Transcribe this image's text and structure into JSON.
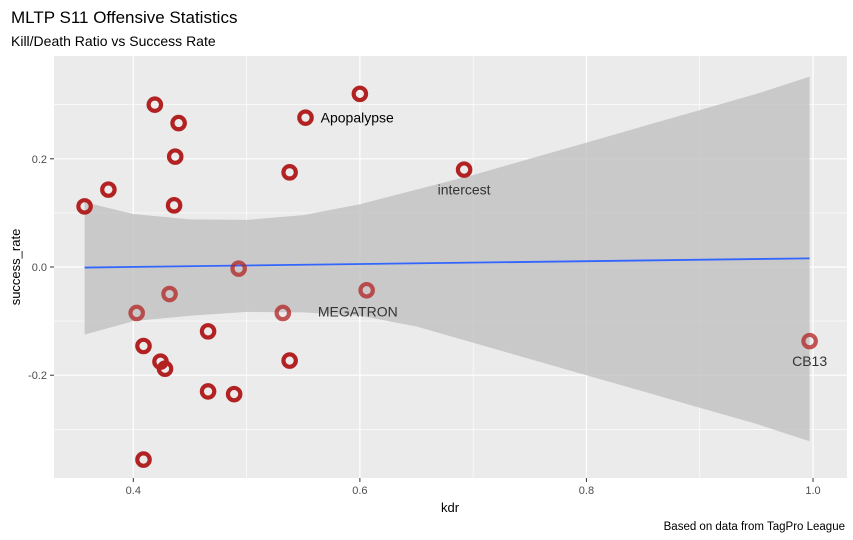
{
  "chart_data": {
    "type": "scatter",
    "title": "MLTP S11 Offensive Statistics",
    "subtitle": "Kill/Death Ratio vs Success Rate",
    "caption": "Based on data from TagPro League",
    "xlabel": "kdr",
    "ylabel": "success_rate",
    "xlim": [
      0.33,
      1.03
    ],
    "ylim": [
      -0.39,
      0.39
    ],
    "x_ticks": [
      0.4,
      0.6,
      0.8,
      1.0
    ],
    "x_tick_labels": [
      "0.4",
      "0.6",
      "0.8",
      "1.0"
    ],
    "y_ticks": [
      -0.2,
      0.0,
      0.2
    ],
    "y_tick_labels": [
      "-0.2",
      "0.0",
      "0.2"
    ],
    "grid": true,
    "colors": {
      "panel": "#ebebeb",
      "grid_major": "#ffffff",
      "point": "#b22222",
      "fit_line": "#3366ff",
      "ribbon": "#bebebe"
    },
    "points": [
      {
        "x": 0.357,
        "y": 0.112
      },
      {
        "x": 0.378,
        "y": 0.143
      },
      {
        "x": 0.419,
        "y": 0.3
      },
      {
        "x": 0.44,
        "y": 0.266
      },
      {
        "x": 0.437,
        "y": 0.204
      },
      {
        "x": 0.436,
        "y": 0.114
      },
      {
        "x": 0.552,
        "y": 0.276
      },
      {
        "x": 0.6,
        "y": 0.32
      },
      {
        "x": 0.538,
        "y": 0.175
      },
      {
        "x": 0.692,
        "y": 0.18
      },
      {
        "x": 0.493,
        "y": -0.003
      },
      {
        "x": 0.432,
        "y": -0.05
      },
      {
        "x": 0.403,
        "y": -0.085
      },
      {
        "x": 0.532,
        "y": -0.085
      },
      {
        "x": 0.606,
        "y": -0.043
      },
      {
        "x": 0.466,
        "y": -0.119
      },
      {
        "x": 0.409,
        "y": -0.146
      },
      {
        "x": 0.424,
        "y": -0.175
      },
      {
        "x": 0.428,
        "y": -0.188
      },
      {
        "x": 0.538,
        "y": -0.173
      },
      {
        "x": 0.466,
        "y": -0.23
      },
      {
        "x": 0.489,
        "y": -0.235
      },
      {
        "x": 0.409,
        "y": -0.356
      },
      {
        "x": 0.997,
        "y": -0.137
      }
    ],
    "labels": [
      {
        "text": "Apopalypse",
        "x": 0.553,
        "y": 0.276,
        "anchor": "left"
      },
      {
        "text": "intercest",
        "x": 0.692,
        "y": 0.18,
        "anchor": "below"
      },
      {
        "text": "MEGATRON",
        "x": 0.607,
        "y": -0.043,
        "anchor": "below-left"
      },
      {
        "text": "CB13",
        "x": 0.997,
        "y": -0.137,
        "anchor": "below"
      }
    ],
    "fit_line": {
      "x": [
        0.357,
        0.997
      ],
      "y": [
        -0.001,
        0.016
      ]
    },
    "confidence_band": {
      "x": [
        0.357,
        0.4,
        0.45,
        0.5,
        0.55,
        0.6,
        0.65,
        0.7,
        0.75,
        0.8,
        0.85,
        0.9,
        0.95,
        0.997
      ],
      "upper": [
        0.12,
        0.098,
        0.088,
        0.087,
        0.096,
        0.116,
        0.143,
        0.17,
        0.2,
        0.23,
        0.26,
        0.29,
        0.32,
        0.352
      ],
      "lower": [
        -0.125,
        -0.1,
        -0.09,
        -0.083,
        -0.084,
        -0.09,
        -0.11,
        -0.14,
        -0.17,
        -0.2,
        -0.23,
        -0.26,
        -0.29,
        -0.322
      ]
    }
  }
}
